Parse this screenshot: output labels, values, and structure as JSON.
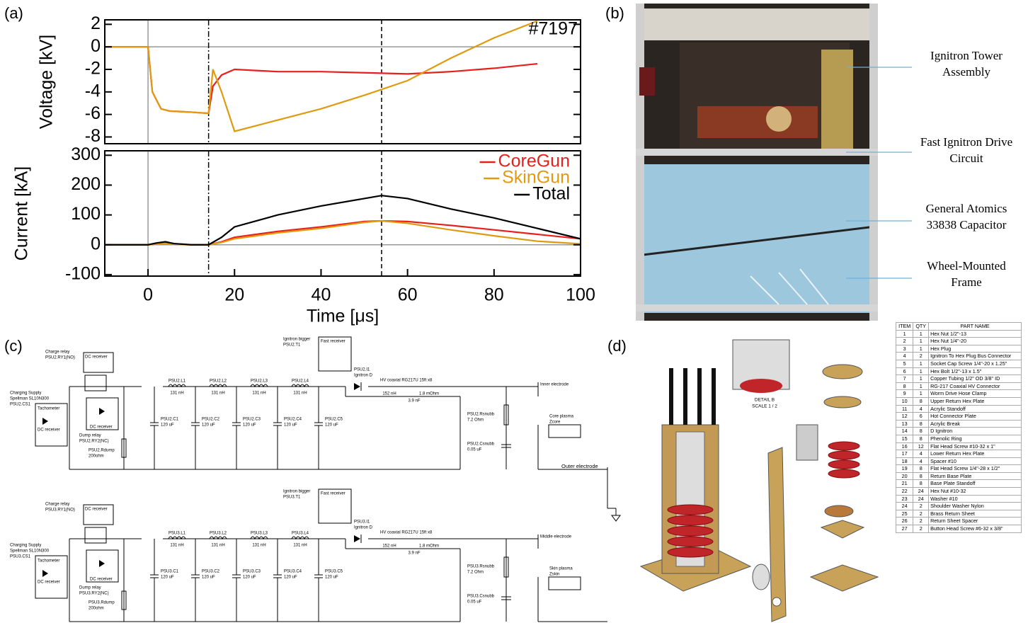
{
  "panel_labels": [
    "(a)",
    "(b)",
    "(c)",
    "(d)"
  ],
  "chart_data": [
    {
      "type": "line",
      "ylabel": "Voltage [kV]",
      "annotation": "#7197",
      "x": [
        -10,
        0,
        1,
        3,
        5,
        10,
        14,
        15,
        17,
        20,
        25,
        30,
        40,
        50,
        60,
        70,
        80,
        90
      ],
      "series": [
        {
          "name": "CoreGun",
          "color": "#e8201c",
          "values": [
            0,
            0,
            -4,
            -5.5,
            -5.7,
            -5.8,
            -5.9,
            -3.5,
            -2.5,
            -2,
            -2.1,
            -2.2,
            -2.2,
            -2.3,
            -2.4,
            -2.2,
            -1.9,
            -1.5
          ]
        },
        {
          "name": "SkinGun",
          "color": "#e09a10",
          "values": [
            0,
            0,
            -4,
            -5.5,
            -5.7,
            -5.8,
            -5.9,
            -2,
            -4,
            -7.5,
            -7,
            -6.5,
            -5.5,
            -4.3,
            -3,
            -1,
            0.8,
            2.3
          ]
        }
      ],
      "xlim": [
        -10,
        100
      ],
      "ylim": [
        -8.6,
        2.4
      ],
      "yticks": [
        2,
        0,
        -2,
        -4,
        -6,
        -8
      ],
      "markers_x": [
        0,
        14,
        54
      ]
    },
    {
      "type": "line",
      "ylabel": "Current [kA]",
      "xlabel": "Time [μs]",
      "x": [
        -10,
        0,
        2,
        4,
        6,
        10,
        14,
        17,
        20,
        25,
        30,
        40,
        50,
        54,
        60,
        70,
        80,
        90,
        100
      ],
      "series": [
        {
          "name": "CoreGun",
          "color": "#e8201c",
          "values": [
            0,
            0,
            3,
            5,
            2,
            0,
            0,
            10,
            25,
            35,
            45,
            60,
            78,
            80,
            78,
            65,
            50,
            35,
            20
          ]
        },
        {
          "name": "SkinGun",
          "color": "#e09a10",
          "values": [
            0,
            0,
            3,
            5,
            2,
            0,
            0,
            8,
            20,
            30,
            40,
            55,
            75,
            80,
            72,
            50,
            30,
            12,
            3
          ]
        },
        {
          "name": "Total",
          "color": "#000000",
          "values": [
            0,
            0,
            6,
            10,
            4,
            0,
            0,
            25,
            60,
            80,
            100,
            130,
            155,
            165,
            155,
            120,
            90,
            55,
            20
          ]
        }
      ],
      "xlim": [
        -10,
        100
      ],
      "ylim": [
        -105,
        315
      ],
      "yticks": [
        300,
        200,
        100,
        0,
        -100
      ],
      "xticks": [
        0,
        20,
        40,
        60,
        80,
        100
      ],
      "markers_x": [
        0,
        14,
        54
      ],
      "legend": "upper right"
    }
  ],
  "photo": {
    "labels": [
      [
        "Ignitron Tower",
        "Assembly"
      ],
      [
        "Fast Ignitron Drive",
        "Circuit"
      ],
      [
        "General Atomics",
        "33838 Capacitor"
      ],
      [
        "Wheel-Mounted",
        "Frame"
      ]
    ]
  },
  "circuits": [
    {
      "charge_relay": [
        "Charge relay",
        "PSU2.RY1(NO)"
      ],
      "dc_receivers": [
        "DC receiver",
        "DC receiver",
        "DC receiver"
      ],
      "supply": [
        "Charging Supply",
        "Spellman SL10N300",
        "PSU2.CS1"
      ],
      "tachometer": "Tachometer",
      "dump_relay": [
        "Dump relay",
        "PSU2.RY2(NC)"
      ],
      "rdump": [
        "PSU2.Rdump",
        "200ohm"
      ],
      "inductors": [
        [
          "PSU2.L1",
          "131 nH"
        ],
        [
          "PSU2.L2",
          "131 nH"
        ],
        [
          "PSU2.L3",
          "131 nH"
        ],
        [
          "PSU2.L4",
          "131 nH"
        ]
      ],
      "capacitors": [
        [
          "PSU2.C1",
          "120 uF"
        ],
        [
          "PSU2.C2",
          "120 uF"
        ],
        [
          "PSU2.C3",
          "120 uF"
        ],
        [
          "PSU2.C4",
          "120 uF"
        ],
        [
          "PSU2.C5",
          "120 uF"
        ]
      ],
      "trigger": [
        "Ignitron bigger",
        "PSU2.T1"
      ],
      "fast_receiver": "Fast receiver",
      "ignitron": [
        "PSU2.I1",
        "Ignitron D"
      ],
      "cable": "HV coaxial RG217U 15ft x8",
      "cable_values": [
        "152 nH",
        "1.8 mOhm",
        "3.9 nF"
      ],
      "rsnubb": [
        "PSU2.Rsnubb",
        "7.2 Ohm"
      ],
      "csnubb": [
        "PSU2.Csnubb",
        "0.05 uF"
      ],
      "plasma": [
        "Core plasma",
        "Zcore"
      ],
      "electrode": "Inner electrode"
    },
    {
      "charge_relay": [
        "Charge relay",
        "PSU3.RY1(NO)"
      ],
      "dc_receivers": [
        "DC receiver",
        "DC receiver",
        "DC receiver"
      ],
      "supply": [
        "Charging Supply",
        "Spellman SL10N300",
        "PSU3.CS1"
      ],
      "tachometer": "Tachometer",
      "dump_relay": [
        "Dump relay",
        "PSU3.RY2(NC)"
      ],
      "rdump": [
        "PSU3.Rdump",
        "200ohm"
      ],
      "inductors": [
        [
          "PSU3.L1",
          "131 nH"
        ],
        [
          "PSU3.L2",
          "131 nH"
        ],
        [
          "PSU3.L3",
          "131 nH"
        ],
        [
          "PSU3.L4",
          "131 nH"
        ]
      ],
      "capacitors": [
        [
          "PSU3.C1",
          "120 uF"
        ],
        [
          "PSU3.C2",
          "120 uF"
        ],
        [
          "PSU3.C3",
          "120 uF"
        ],
        [
          "PSU3.C4",
          "120 uF"
        ],
        [
          "PSU3.C5",
          "120 uF"
        ]
      ],
      "trigger": [
        "Ignitron bigger",
        "PSU3.T1"
      ],
      "fast_receiver": "Fast receiver",
      "ignitron": [
        "PSU3.I1",
        "Ignitron D"
      ],
      "cable": "HV coaxial RG217U 15ft x8",
      "cable_values": [
        "152 nH",
        "1.8 mOhm",
        "3.9 nF"
      ],
      "rsnubb": [
        "PSU3.Rsnubb",
        "7.2 Ohm"
      ],
      "csnubb": [
        "PSU3.Csnubb",
        "0.05 uF"
      ],
      "plasma": [
        "Skin plasma",
        "Zskin"
      ],
      "electrode": "Middle electrode"
    }
  ],
  "outer_electrode": "Outer electrode",
  "assembly": {
    "detail": [
      "DETAIL B",
      "SCALE 1 / 2"
    ]
  },
  "parts_table": {
    "columns": [
      "ITEM",
      "QTY",
      "PART NAME"
    ],
    "rows": [
      [
        1,
        1,
        "Hex Nut 1/2\"-13"
      ],
      [
        2,
        1,
        "Hex Nut 1/4\"-20"
      ],
      [
        3,
        1,
        "Hex Plug"
      ],
      [
        4,
        2,
        "Ignitron To Hex Plug Bus Connector"
      ],
      [
        5,
        1,
        "Socket Cap Screw 1/4\"-20 x 1.25\""
      ],
      [
        6,
        1,
        "Hex Bolt 1/2\"-13 x 1.5\""
      ],
      [
        7,
        1,
        "Copper Tubing 1/2\" OD 3/8\" ID"
      ],
      [
        8,
        1,
        "RG-217 Coaxial HV Connector"
      ],
      [
        9,
        1,
        "Worm Drive Hose Clamp"
      ],
      [
        10,
        8,
        "Upper Return Hex Plate"
      ],
      [
        11,
        4,
        "Acrylic Standoff"
      ],
      [
        12,
        6,
        "Hot Connector Plate"
      ],
      [
        13,
        8,
        "Acrylic Break"
      ],
      [
        14,
        8,
        "D Ignitron"
      ],
      [
        15,
        8,
        "Phenolic Ring"
      ],
      [
        16,
        12,
        "Flat Head Screw #10-32 x 1\""
      ],
      [
        17,
        4,
        "Lower Return Hex Plate"
      ],
      [
        18,
        4,
        "Spacer #10"
      ],
      [
        19,
        8,
        "Flat Head Screw 1/4\"-28 x 1/2\""
      ],
      [
        20,
        8,
        "Return Base Plate"
      ],
      [
        21,
        8,
        "Base Plate Standoff"
      ],
      [
        22,
        24,
        "Hex Nut #10-32"
      ],
      [
        23,
        24,
        "Washer #10"
      ],
      [
        24,
        2,
        "Shoulder Washer Nylon"
      ],
      [
        25,
        2,
        "Brass Return Sheet"
      ],
      [
        26,
        2,
        "Return Sheet Spacer"
      ],
      [
        27,
        2,
        "Button Head Screw #6-32 x 3/8\""
      ]
    ]
  }
}
